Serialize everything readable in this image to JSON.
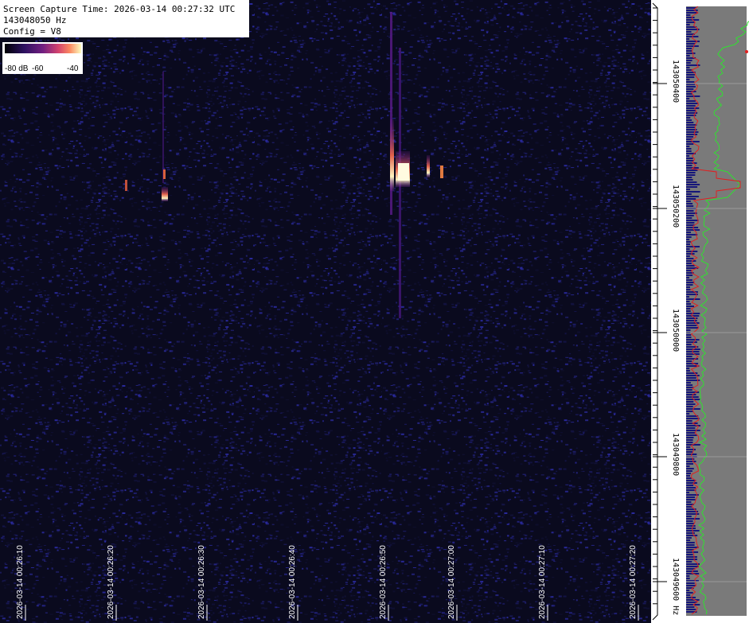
{
  "header": {
    "capture": "Screen Capture Time: 2026-03-14 00:27:32 UTC",
    "frequency": "143048050 Hz",
    "config": "Config = V8"
  },
  "colorbar": {
    "labels": [
      "-80 dB",
      "-60",
      "-40"
    ]
  },
  "time_axis": {
    "labels": [
      "2026-03-14 00:26:10",
      "2026-03-14 00:26:20",
      "2026-03-14 00:26:30",
      "2026-03-14 00:26:40",
      "2026-03-14 00:26:50",
      "2026-03-14 00:27:00",
      "2026-03-14 00:27:10",
      "2026-03-14 00:27:20"
    ]
  },
  "frequency_axis": {
    "labels": [
      "143050400",
      "143050200",
      "143050000",
      "143049800",
      "143049600 Hz"
    ]
  }
}
